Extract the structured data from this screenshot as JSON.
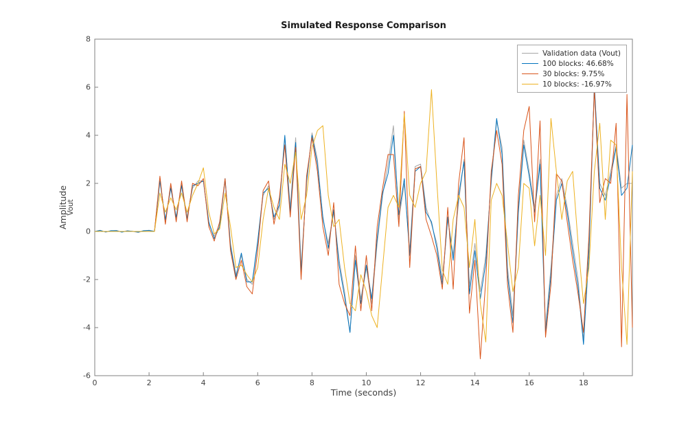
{
  "chart_data": {
    "type": "line",
    "title": "Simulated Response Comparison",
    "xlabel": "Time (seconds)",
    "ylabel": "Amplitude",
    "ylabel_line2": "Vout",
    "xlim": [
      0,
      19.8
    ],
    "ylim": [
      -6,
      8
    ],
    "x_ticks": [
      0,
      2,
      4,
      6,
      8,
      10,
      12,
      14,
      16,
      18
    ],
    "y_ticks": [
      -6,
      -4,
      -2,
      0,
      2,
      4,
      6,
      8
    ],
    "grid": false,
    "legend_position": "top-right-inside",
    "axis_color": "#808080",
    "tick_label_color": "#424242",
    "x": [
      0,
      0.2,
      0.4,
      0.6,
      0.8,
      1,
      1.2,
      1.4,
      1.6,
      1.8,
      2,
      2.2,
      2.4,
      2.6,
      2.8,
      3,
      3.2,
      3.4,
      3.6,
      3.8,
      4,
      4.2,
      4.4,
      4.6,
      4.8,
      5,
      5.2,
      5.4,
      5.6,
      5.8,
      6,
      6.2,
      6.4,
      6.6,
      6.8,
      7,
      7.2,
      7.4,
      7.6,
      7.8,
      8,
      8.2,
      8.4,
      8.6,
      8.8,
      9,
      9.2,
      9.4,
      9.6,
      9.8,
      10,
      10.2,
      10.4,
      10.6,
      10.8,
      11,
      11.2,
      11.4,
      11.6,
      11.8,
      12,
      12.2,
      12.4,
      12.6,
      12.8,
      13,
      13.2,
      13.4,
      13.6,
      13.8,
      14,
      14.2,
      14.4,
      14.6,
      14.8,
      15,
      15.2,
      15.4,
      15.6,
      15.8,
      16,
      16.2,
      16.4,
      16.6,
      16.8,
      17,
      17.2,
      17.4,
      17.6,
      17.8,
      18,
      18.2,
      18.4,
      18.6,
      18.8,
      19,
      19.2,
      19.4,
      19.6,
      19.8
    ],
    "series": [
      {
        "name": "Validation data (Vout)",
        "color": "#a6a6a6",
        "values": [
          0,
          0.05,
          -0.03,
          0.02,
          0.04,
          -0.02,
          0.03,
          0,
          -0.04,
          0.02,
          0.05,
          0,
          2.2,
          0.4,
          1.9,
          0.5,
          2.0,
          0.6,
          1.8,
          2.1,
          2.1,
          0.3,
          -0.2,
          0.3,
          2.1,
          -0.5,
          -1.8,
          -1.0,
          -2.0,
          -2.2,
          -0.5,
          1.5,
          1.9,
          0.5,
          1.0,
          3.9,
          1.0,
          3.9,
          -1.5,
          2.0,
          4.1,
          3.0,
          0.5,
          -0.5,
          0.8,
          -1.2,
          -2.5,
          -4.2,
          -1.0,
          -2.8,
          -1.5,
          -3.0,
          -0.5,
          1.5,
          2.8,
          4.4,
          0.5,
          2.0,
          -0.8,
          2.7,
          2.8,
          1.0,
          0.3,
          -0.5,
          -2.0,
          0.5,
          -1.0,
          1.2,
          3.0,
          -2.3,
          -0.5,
          -2.5,
          -1.0,
          2.0,
          4.6,
          3.5,
          -1.5,
          -3.5,
          1.0,
          3.8,
          2.5,
          1.0,
          3.0,
          -4.0,
          -1.5,
          1.5,
          2.2,
          1.0,
          -0.5,
          -2.0,
          -4.5,
          -1.0,
          6.0,
          2.0,
          1.5,
          2.5,
          3.6,
          1.8,
          2.0,
          2.0
        ]
      },
      {
        "name": "100 blocks: 46.68%",
        "color": "#0072bd",
        "values": [
          0,
          0.04,
          -0.02,
          0.03,
          0.03,
          -0.03,
          0.02,
          0.01,
          -0.03,
          0.03,
          0.04,
          0.01,
          2.1,
          0.5,
          1.8,
          0.6,
          1.9,
          0.5,
          1.9,
          2.0,
          2.1,
          0.4,
          -0.3,
          0.2,
          2.2,
          -0.6,
          -1.9,
          -0.9,
          -2.1,
          -2.1,
          -0.4,
          1.6,
          1.8,
          0.6,
          1.1,
          4.0,
          0.8,
          3.7,
          -1.7,
          2.1,
          4.0,
          2.8,
          0.6,
          -0.7,
          0.9,
          -1.4,
          -2.7,
          -4.2,
          -1.2,
          -3.0,
          -1.4,
          -2.8,
          -0.3,
          1.6,
          2.4,
          4.0,
          0.7,
          2.2,
          -1.0,
          2.5,
          2.7,
          0.8,
          0.4,
          -0.7,
          -2.2,
          0.6,
          -1.2,
          1.5,
          2.9,
          -2.6,
          -0.8,
          -2.8,
          -1.3,
          2.2,
          4.7,
          3.2,
          -1.8,
          -3.8,
          0.8,
          3.6,
          2.3,
          0.8,
          2.8,
          -4.2,
          -1.8,
          1.3,
          2.0,
          0.8,
          -0.8,
          -2.3,
          -4.7,
          -0.8,
          6.1,
          1.8,
          1.3,
          2.3,
          3.5,
          1.5,
          1.8,
          3.6
        ]
      },
      {
        "name": "30 blocks: 9.75%",
        "color": "#d95319",
        "values": [
          0,
          0,
          0,
          0,
          0,
          0,
          0,
          0,
          0,
          0,
          0,
          0,
          2.3,
          0.3,
          2.0,
          0.4,
          2.1,
          0.4,
          2.0,
          1.9,
          2.2,
          0.2,
          -0.4,
          0.4,
          2.2,
          -0.8,
          -2.0,
          -1.2,
          -2.3,
          -2.6,
          -0.8,
          1.7,
          2.1,
          0.3,
          1.4,
          3.6,
          0.6,
          3.5,
          -2.0,
          2.3,
          3.9,
          2.5,
          0.2,
          -1.0,
          1.2,
          -2.2,
          -3.0,
          -3.5,
          -0.6,
          -3.3,
          -1.0,
          -3.3,
          0.2,
          1.8,
          3.2,
          3.2,
          0.2,
          5.0,
          -1.5,
          2.6,
          2.7,
          0.5,
          -0.2,
          -1.0,
          -2.4,
          1.0,
          -2.4,
          2.0,
          3.9,
          -3.4,
          -1.2,
          -5.3,
          -2.0,
          2.5,
          4.2,
          2.8,
          -2.2,
          -4.2,
          1.5,
          4.2,
          5.2,
          0.4,
          4.6,
          -4.4,
          -2.2,
          2.4,
          2.1,
          0.4,
          -1.2,
          -2.6,
          -4.2,
          -0.2,
          5.9,
          1.2,
          2.2,
          2.0,
          4.5,
          -4.8,
          5.7,
          -4.0
        ]
      },
      {
        "name": "10 blocks: -16.97%",
        "color": "#edb120",
        "values": [
          0,
          0,
          0,
          0,
          0,
          0,
          0,
          0,
          0,
          0,
          0,
          0,
          1.6,
          0.8,
          1.4,
          0.9,
          1.6,
          0.8,
          1.5,
          2.0,
          2.65,
          0.8,
          -0.1,
          0.1,
          1.6,
          0.2,
          -1.5,
          -1.4,
          -1.8,
          -2.1,
          -1.5,
          0.5,
          1.8,
          1.0,
          0.5,
          2.8,
          2.0,
          3.3,
          0.5,
          1.5,
          3.5,
          4.2,
          4.4,
          1.5,
          0.2,
          0.5,
          -1.5,
          -3.0,
          -3.3,
          -1.8,
          -2.5,
          -3.5,
          -4.0,
          -1.5,
          1.0,
          1.5,
          1.0,
          4.9,
          1.5,
          1.0,
          2.0,
          2.5,
          5.9,
          2.0,
          -1.6,
          -2.2,
          0.5,
          1.5,
          1.0,
          -1.5,
          0.5,
          -3.0,
          -4.6,
          1.3,
          2.0,
          1.5,
          -0.5,
          -2.5,
          -1.5,
          2.0,
          1.8,
          -0.6,
          1.5,
          -1.0,
          4.7,
          2.5,
          0.5,
          2.1,
          2.5,
          -0.5,
          -3.0,
          -1.5,
          2.5,
          4.5,
          0.5,
          3.8,
          3.6,
          -1.5,
          -4.7,
          2.5
        ]
      }
    ]
  }
}
